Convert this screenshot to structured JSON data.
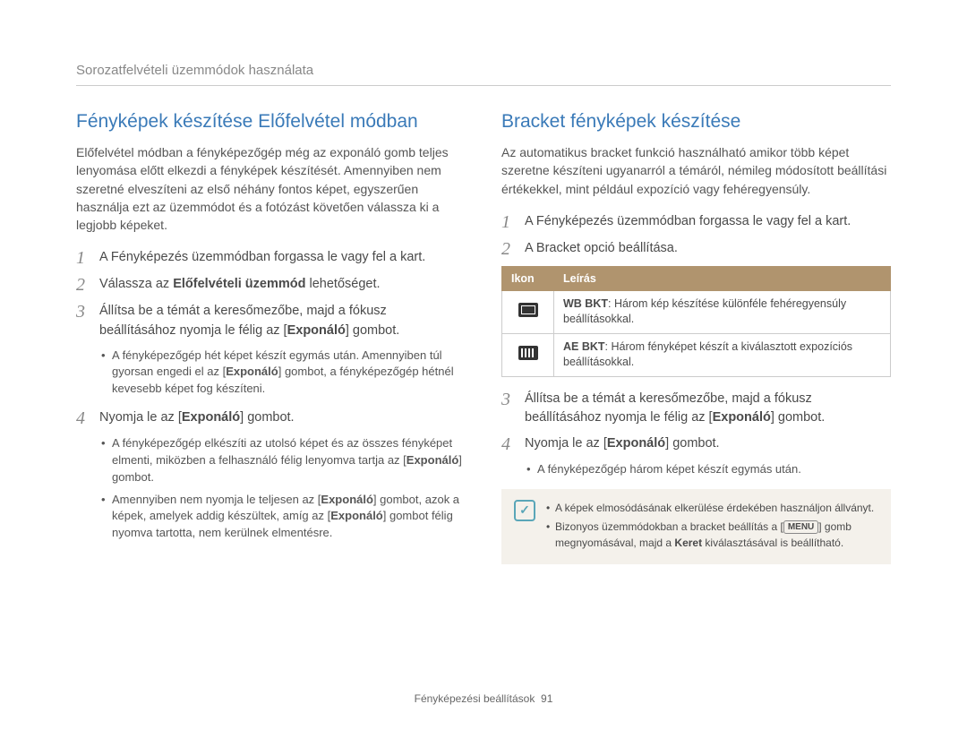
{
  "colors": {
    "heading": "#3a7ab8",
    "text": "#4a4a4a",
    "muted": "#888888",
    "table_header_bg": "#b0946e",
    "table_header_text": "#ffffff",
    "note_bg": "#f4f1eb",
    "note_icon": "#5aa6b8",
    "border": "#cccccc",
    "background": "#ffffff"
  },
  "breadcrumb": "Sorozatfelvételi üzemmódok használata",
  "left": {
    "title": "Fényképek készítése Előfelvétel módban",
    "intro": "Előfelvétel módban a fényképezőgép még az exponáló gomb teljes lenyomása előtt elkezdi a fényképek készítését. Amennyiben nem szeretné elveszíteni az első néhány fontos képet, egyszerűen használja ezt az üzemmódot és a fotózást követően válassza ki a legjobb képeket.",
    "steps": {
      "s1": "A Fényképezés üzemmódban forgassa le vagy fel a kart.",
      "s2_pre": "Válassza az ",
      "s2_bold": "Előfelvételi üzemmód",
      "s2_post": " lehetőséget.",
      "s3_pre": "Állítsa be a témát a keresőmezőbe, majd a fókusz beállításához nyomja le félig az [",
      "s3_bold": "Exponáló",
      "s3_post": "] gombot.",
      "s3_bullets": [
        {
          "pre": "A fényképezőgép hét képet készít egymás után. Amennyiben túl gyorsan engedi el az [",
          "bold": "Exponáló",
          "post": "] gombot, a fényképezőgép hétnél kevesebb képet fog készíteni."
        }
      ],
      "s4_pre": "Nyomja le az [",
      "s4_bold": "Exponáló",
      "s4_post": "] gombot.",
      "s4_bullets": [
        {
          "pre": "A fényképezőgép elkészíti az utolsó képet és az összes fényképet elmenti, miközben a felhasználó félig lenyomva tartja az [",
          "bold": "Exponáló",
          "post": "] gombot."
        },
        {
          "pre": "Amennyiben nem nyomja le teljesen az [",
          "bold": "Exponáló",
          "mid": "] gombot, azok a képek, amelyek addig készültek, amíg az [",
          "bold2": "Exponáló",
          "post": "] gombot félig nyomva tartotta, nem kerülnek elmentésre."
        }
      ]
    }
  },
  "right": {
    "title": "Bracket fényképek készítése",
    "intro": "Az automatikus bracket funkció használható amikor több képet szeretne készíteni ugyanarról a témáról, némileg módosított beállítási értékekkel, mint például expozíció vagy fehéregyensúly.",
    "steps": {
      "s1": "A Fényképezés üzemmódban forgassa le vagy fel a kart.",
      "s2": "A Bracket opció beállítása.",
      "s3_pre": "Állítsa be a témát a keresőmezőbe, majd a fókusz beállításához nyomja le félig az [",
      "s3_bold": "Exponáló",
      "s3_post": "] gombot.",
      "s4_pre": "Nyomja le az [",
      "s4_bold": "Exponáló",
      "s4_post": "] gombot.",
      "s4_bullet": "A fényképezőgép három képet készít egymás után."
    },
    "table": {
      "col1": "Ikon",
      "col2": "Leírás",
      "row1_bold": "WB BKT",
      "row1_rest": ": Három kép készítése különféle fehéregyensúly beállításokkal.",
      "row2_bold": "AE BKT",
      "row2_rest": ": Három fényképet készít a kiválasztott expozíciós beállításokkal."
    },
    "note": {
      "li1": "A képek elmosódásának elkerülése érdekében használjon állványt.",
      "li2_pre": "Bizonyos üzemmódokban a bracket beállítás a [",
      "li2_pill": "MENU",
      "li2_mid": "] gomb megnyomásával, majd a ",
      "li2_bold": "Keret",
      "li2_post": " kiválasztásával is beállítható."
    }
  },
  "footer_text": "Fényképezési beállítások",
  "footer_page": "91"
}
